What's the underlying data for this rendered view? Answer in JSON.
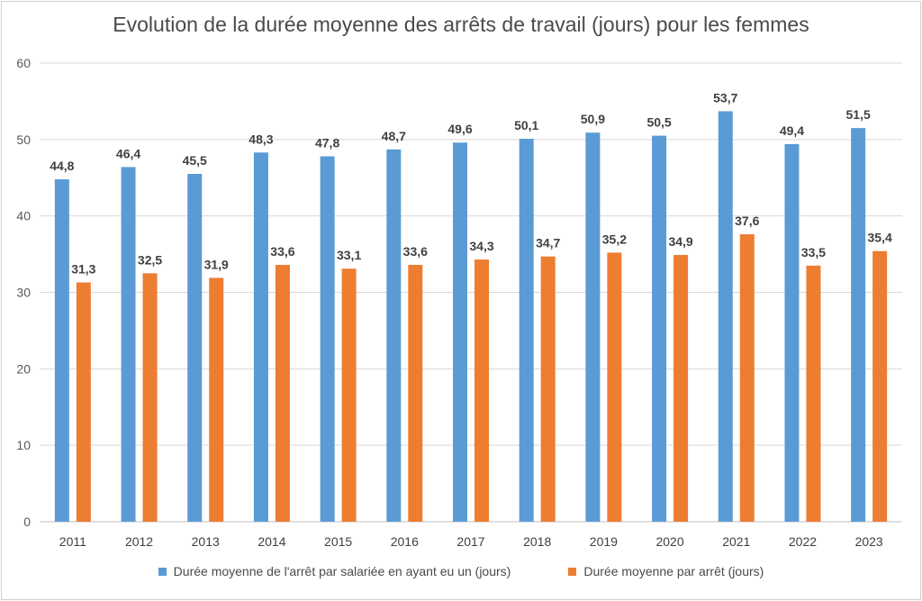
{
  "chart_data": {
    "type": "bar",
    "title": "Evolution de la durée moyenne des arrêts de travail (jours) pour les femmes",
    "xlabel": "",
    "ylabel": "",
    "ylim": [
      0,
      60
    ],
    "yticks": [
      "0",
      "10",
      "20",
      "30",
      "40",
      "50",
      "60"
    ],
    "grid": true,
    "legend_position": "bottom",
    "categories": [
      "2011",
      "2012",
      "2013",
      "2014",
      "2015",
      "2016",
      "2017",
      "2018",
      "2019",
      "2020",
      "2021",
      "2022",
      "2023"
    ],
    "series": [
      {
        "name": "Durée moyenne de l'arrêt par salariée en ayant eu un (jours)",
        "color": "#5b9bd5",
        "values": [
          44.8,
          46.4,
          45.5,
          48.3,
          47.8,
          48.7,
          49.6,
          50.1,
          50.9,
          50.5,
          53.7,
          49.4,
          51.5
        ],
        "labels": [
          "44,8",
          "46,4",
          "45,5",
          "48,3",
          "47,8",
          "48,7",
          "49,6",
          "50,1",
          "50,9",
          "50,5",
          "53,7",
          "49,4",
          "51,5"
        ]
      },
      {
        "name": "Durée moyenne par arrêt (jours)",
        "color": "#ed7d31",
        "values": [
          31.3,
          32.5,
          31.9,
          33.6,
          33.1,
          33.6,
          34.3,
          34.7,
          35.2,
          34.9,
          37.6,
          33.5,
          35.4
        ],
        "labels": [
          "31,3",
          "32,5",
          "31,9",
          "33,6",
          "33,1",
          "33,6",
          "34,3",
          "34,7",
          "35,2",
          "34,9",
          "37,6",
          "33,5",
          "35,4"
        ]
      }
    ]
  }
}
